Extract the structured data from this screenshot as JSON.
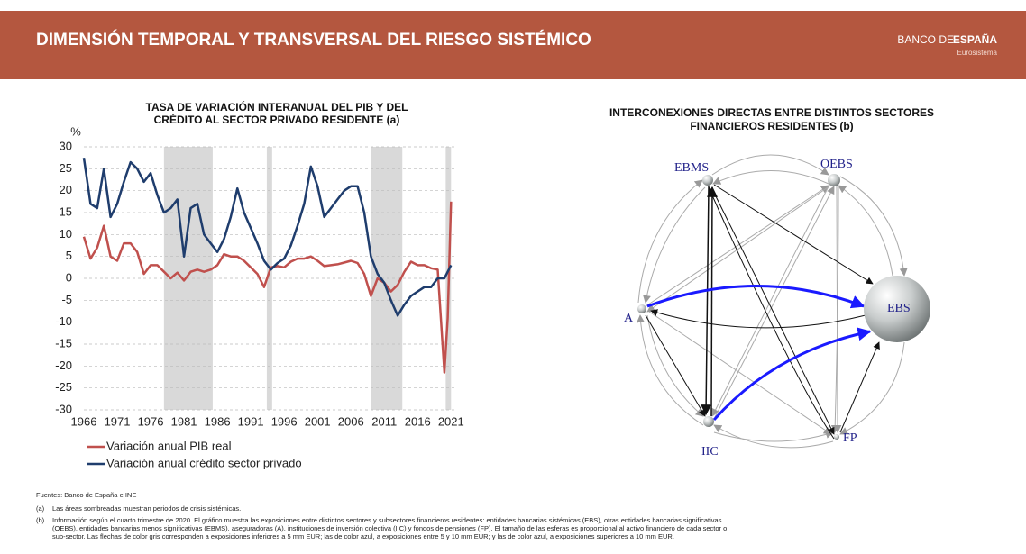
{
  "header": {
    "title": "DIMENSIÓN TEMPORAL Y TRANSVERSAL DEL RIESGO SISTÉMICO",
    "logo_light": "BANCO DE",
    "logo_bold": "ESPAÑA",
    "logo_sub": "Eurosistema"
  },
  "chart_data": {
    "type": "line",
    "title": [
      "TASA DE VARIACIÓN INTERANUAL DEL PIB Y DEL",
      "CRÉDITO AL SECTOR PRIVADO RESIDENTE (a)"
    ],
    "y_label": "%",
    "x": [
      1966,
      1967,
      1968,
      1969,
      1970,
      1971,
      1972,
      1973,
      1974,
      1975,
      1976,
      1977,
      1978,
      1979,
      1980,
      1981,
      1982,
      1983,
      1984,
      1985,
      1986,
      1987,
      1988,
      1989,
      1990,
      1991,
      1992,
      1993,
      1994,
      1995,
      1996,
      1997,
      1998,
      1999,
      2000,
      2001,
      2002,
      2003,
      2004,
      2005,
      2006,
      2007,
      2008,
      2009,
      2010,
      2011,
      2012,
      2013,
      2014,
      2015,
      2016,
      2017,
      2018,
      2019,
      2020,
      2020.5,
      2021
    ],
    "series": [
      {
        "name": "Variación anual PIB real",
        "color": "#c0504d",
        "values": [
          9.5,
          4.5,
          7,
          12,
          5,
          4,
          8,
          8,
          6,
          1,
          3,
          3,
          1.5,
          0,
          1.3,
          -0.5,
          1.5,
          2,
          1.5,
          2,
          3,
          5.5,
          5,
          5,
          4,
          2.5,
          1,
          -2,
          2.5,
          2.8,
          2.5,
          3.8,
          4.5,
          4.5,
          5,
          4,
          2.8,
          3,
          3.2,
          3.6,
          4,
          3.5,
          1,
          -4,
          0,
          -1,
          -3,
          -1.5,
          1.5,
          3.8,
          3,
          3,
          2.3,
          2,
          -21.5,
          -9,
          17.5
        ]
      },
      {
        "name": "Variación anual crédito sector privado",
        "color": "#1f3d6d",
        "values": [
          27.5,
          17,
          16,
          25,
          14,
          17,
          22,
          26.5,
          25,
          22,
          24,
          19,
          15,
          16,
          18,
          5,
          16,
          17,
          10,
          8,
          6,
          9,
          14,
          20.5,
          15,
          11.5,
          8,
          4,
          2,
          3.5,
          4.5,
          7.5,
          12,
          17,
          25.5,
          21,
          14,
          16,
          18,
          20,
          21,
          21,
          15,
          5,
          1,
          -1,
          -5,
          -8.5,
          -6,
          -4,
          -3,
          -2,
          -2,
          0,
          0,
          1.5,
          3
        ]
      }
    ],
    "shaded": [
      [
        1978,
        1985.3
      ],
      [
        1993.4,
        1994.2
      ],
      [
        2009,
        2013.7
      ],
      [
        2020.2,
        2021
      ]
    ],
    "xlim": [
      1966,
      2021.5
    ],
    "xticks": [
      1966,
      1971,
      1976,
      1981,
      1986,
      1991,
      1996,
      2001,
      2006,
      2011,
      2016,
      2021
    ],
    "ylim": [
      -30,
      30
    ],
    "yticks": [
      -30,
      -25,
      -20,
      -15,
      -10,
      -5,
      0,
      5,
      10,
      15,
      20,
      25,
      30
    ],
    "grid": true
  },
  "network": {
    "title": [
      "INTERCONEXIONES DIRECTAS ENTRE DISTINTOS SECTORES",
      "FINANCIEROS RESIDENTES (b)"
    ],
    "nodes": [
      {
        "label": "EBMS"
      },
      {
        "label": "OEBS"
      },
      {
        "label": "A"
      },
      {
        "label": "EBS"
      },
      {
        "label": "IIC"
      },
      {
        "label": "FP"
      }
    ]
  },
  "notes": {
    "source": "Fuentes: Banco de España e INE",
    "a_mark": "(a)",
    "a_text": "Las áreas sombreadas muestran periodos de crisis sistémicas.",
    "b_mark": "(b)",
    "b_text": [
      "Información según el cuarto trimestre de 2020. El gráfico muestra las exposiciones entre distintos sectores y subsectores financieros residentes: entidades bancarias sistémicas (EBS), otras entidades bancarias significativas",
      "(OEBS), entidades bancarias menos significativas (EBMS), aseguradoras (A), instituciones de inversión colectiva (IIC) y fondos de pensiones (FP). El tamaño de las esferas es proporcional al activo financiero de cada sector o",
      "sub-sector. Las flechas de color gris corresponden a exposiciones inferiores a 5 mm EUR; las de color azul, a exposiciones entre 5 y 10 mm EUR; y las de color azul, a exposiciones superiores a 10 mm EUR."
    ]
  }
}
